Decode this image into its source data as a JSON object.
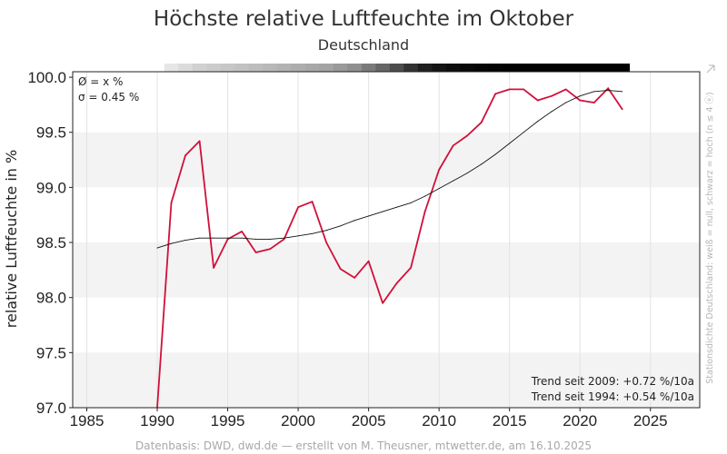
{
  "chart_data": {
    "type": "line",
    "title": "Höchste relative Luftfeuchte im Oktober",
    "subtitle": "Deutschland",
    "xlabel": "",
    "ylabel": "relative Luftfeuchte in %",
    "xlim": [
      1984,
      2028.5
    ],
    "ylim": [
      97.0,
      100.05
    ],
    "x_ticks": [
      1985,
      1990,
      1995,
      2000,
      2005,
      2010,
      2015,
      2020,
      2025
    ],
    "y_ticks": [
      97.0,
      97.5,
      98.0,
      98.5,
      99.0,
      99.5,
      100.0
    ],
    "y_tick_labels": [
      "97.0",
      "97.5",
      "98.0",
      "98.5",
      "99.0",
      "99.5",
      "100.0"
    ],
    "grid": "horizontal bands",
    "stats": {
      "mean": "Ø = x %",
      "sigma": "σ = 0.45 %"
    },
    "series": [
      {
        "name": "",
        "color": "#d0103a",
        "x": [
          1990,
          1991,
          1992,
          1993,
          1994,
          1995,
          1996,
          1997,
          1998,
          1999,
          2000,
          2001,
          2002,
          2003,
          2004,
          2005,
          2006,
          2007,
          2008,
          2009,
          2010,
          2011,
          2012,
          2013,
          2014,
          2015,
          2016,
          2017,
          2018,
          2019,
          2020,
          2021,
          2022,
          2023
        ],
        "y": [
          97.0,
          98.86,
          99.29,
          99.42,
          98.27,
          98.53,
          98.6,
          98.41,
          98.44,
          98.53,
          98.82,
          98.87,
          98.5,
          98.26,
          98.18,
          98.33,
          97.95,
          98.13,
          98.27,
          98.78,
          99.16,
          99.38,
          99.47,
          99.59,
          99.85,
          99.89,
          99.89,
          99.79,
          99.83,
          99.89,
          99.79,
          99.77,
          99.9,
          99.71
        ]
      },
      {
        "name": "",
        "color": "#111111",
        "x": [
          1990,
          1991,
          1992,
          1993,
          1994,
          1995,
          1996,
          1997,
          1998,
          1999,
          2000,
          2001,
          2002,
          2003,
          2004,
          2005,
          2006,
          2007,
          2008,
          2009,
          2010,
          2011,
          2012,
          2013,
          2014,
          2015,
          2016,
          2017,
          2018,
          2019,
          2020,
          2021,
          2022,
          2023
        ],
        "y": [
          98.45,
          98.49,
          98.52,
          98.54,
          98.54,
          98.54,
          98.54,
          98.53,
          98.53,
          98.54,
          98.56,
          98.58,
          98.61,
          98.65,
          98.7,
          98.74,
          98.78,
          98.82,
          98.86,
          98.92,
          98.99,
          99.06,
          99.13,
          99.21,
          99.3,
          99.4,
          99.5,
          99.6,
          99.69,
          99.77,
          99.83,
          99.87,
          99.88,
          99.87
        ]
      }
    ],
    "station_density": {
      "x": [
        1991,
        1992,
        1993,
        1994,
        1995,
        1996,
        1997,
        1998,
        1999,
        2000,
        2001,
        2002,
        2003,
        2004,
        2005,
        2006,
        2007,
        2008,
        2009,
        2010,
        2011,
        2012,
        2013,
        2014,
        2015,
        2016,
        2017,
        2018,
        2019,
        2020,
        2021,
        2022,
        2023
      ],
      "level": [
        0.1,
        0.14,
        0.18,
        0.2,
        0.22,
        0.24,
        0.26,
        0.28,
        0.3,
        0.32,
        0.34,
        0.36,
        0.4,
        0.44,
        0.52,
        0.6,
        0.7,
        0.8,
        0.88,
        0.92,
        0.95,
        0.97,
        0.98,
        0.99,
        1.0,
        1.0,
        1.0,
        1.0,
        1.0,
        1.0,
        1.0,
        1.0,
        1.0
      ]
    },
    "trend_lines": [
      "Trend seit 2009: +0.72 %/10a",
      "Trend seit 1994: +0.54 %/10a"
    ],
    "side_note": "Stationsdichte Deutschland: weiß = null, schwarz = hoch (n ≤ 4 ⓔ)",
    "source": "Datenbasis: DWD, dwd.de — erstellt von M. Theusner, mtwetter.de, am 16.10.2025"
  }
}
